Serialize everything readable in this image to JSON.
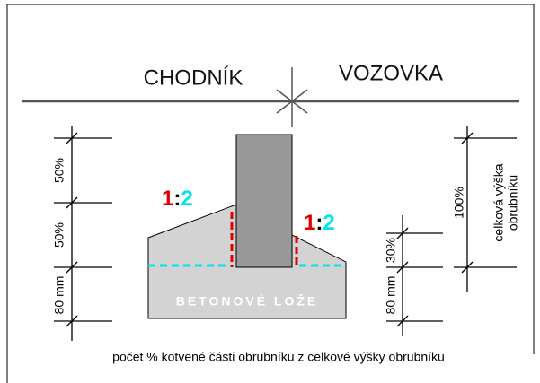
{
  "labels": {
    "left_zone": "CHODNÍK",
    "right_zone": "VOZOVKA",
    "bed": "BETONOVÉ LOŽE",
    "caption": "počet % kotvené části obrubníku z celkové výšky obrubníku"
  },
  "left_dims": [
    "50%",
    "50%",
    "80 mm"
  ],
  "right_dims": [
    "30%",
    "80 mm"
  ],
  "total_dim": {
    "value": "100%",
    "label_line1": "celková výška",
    "label_line2": "obrubníku"
  },
  "slopes": [
    {
      "left": "1",
      "sep": ":",
      "right": "2"
    },
    {
      "left": "1",
      "sep": ":",
      "right": "2"
    }
  ]
}
